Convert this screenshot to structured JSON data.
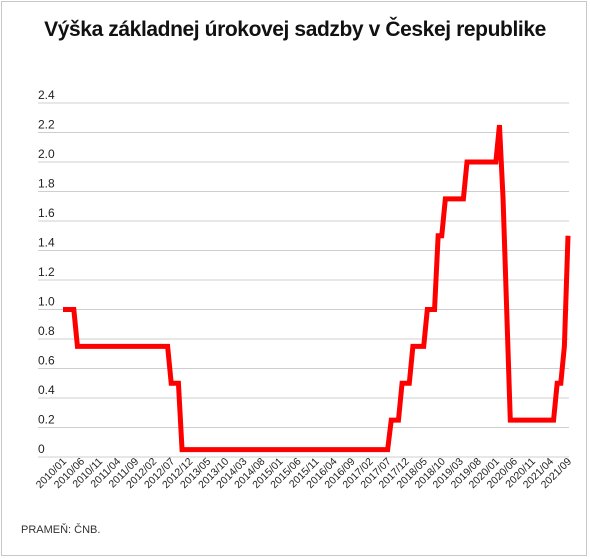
{
  "title": "Výška základnej úrokovej sadzby v Českej republike",
  "source": "PRAMEŇ: ČNB.",
  "chart_data": {
    "type": "line",
    "title": "Výška základnej úrokovej sadzby v Českej republike",
    "xlabel": "",
    "ylabel": "",
    "ylim": [
      0,
      2.4
    ],
    "yticks": [
      0,
      0.2,
      0.4,
      0.6,
      0.8,
      1.0,
      1.2,
      1.4,
      1.6,
      1.8,
      2.0,
      2.2,
      2.4
    ],
    "ytick_labels": [
      "0",
      "0.2",
      "0.4",
      "0.6",
      "0.8",
      "1.0",
      "1.2",
      "1.4",
      "1.6",
      "1.8",
      "2.0",
      "2.2",
      "2.4"
    ],
    "grid": "horizontal",
    "legend": "none",
    "line_color": "#ff0000",
    "xtick_labels": [
      "2010/01",
      "2010/06",
      "2010/11",
      "2011/04",
      "2011/09",
      "2012/02",
      "2012/07",
      "2012/12",
      "2013/05",
      "2013/10",
      "2014/03",
      "2014/08",
      "2015/01",
      "2015/06",
      "2015/11",
      "2016/04",
      "2016/09",
      "2017/02",
      "2017/07",
      "2017/12",
      "2018/05",
      "2018/10",
      "2019/03",
      "2019/08",
      "2020/01",
      "2020/06",
      "2020/11",
      "2021/04",
      "2021/09"
    ],
    "series": [
      {
        "x": [
          "2010/01",
          "2010/04",
          "2010/05",
          "2012/06",
          "2012/07",
          "2012/09",
          "2012/10",
          "2017/07",
          "2017/08",
          "2017/10",
          "2017/11",
          "2018/01",
          "2018/02",
          "2018/05",
          "2018/06",
          "2018/08",
          "2018/09",
          "2018/10",
          "2018/11",
          "2019/04",
          "2019/05",
          "2020/01",
          "2020/02",
          "2020/03",
          "2020/04",
          "2020/05",
          "2021/05",
          "2021/06",
          "2021/07",
          "2021/08",
          "2021/09"
        ],
        "values": [
          1.0,
          1.0,
          0.75,
          0.75,
          0.5,
          0.5,
          0.05,
          0.05,
          0.25,
          0.25,
          0.5,
          0.5,
          0.75,
          0.75,
          1.0,
          1.0,
          1.5,
          1.5,
          1.75,
          1.75,
          2.0,
          2.0,
          2.25,
          1.75,
          1.0,
          0.25,
          0.25,
          0.5,
          0.5,
          0.75,
          1.5
        ]
      }
    ]
  }
}
